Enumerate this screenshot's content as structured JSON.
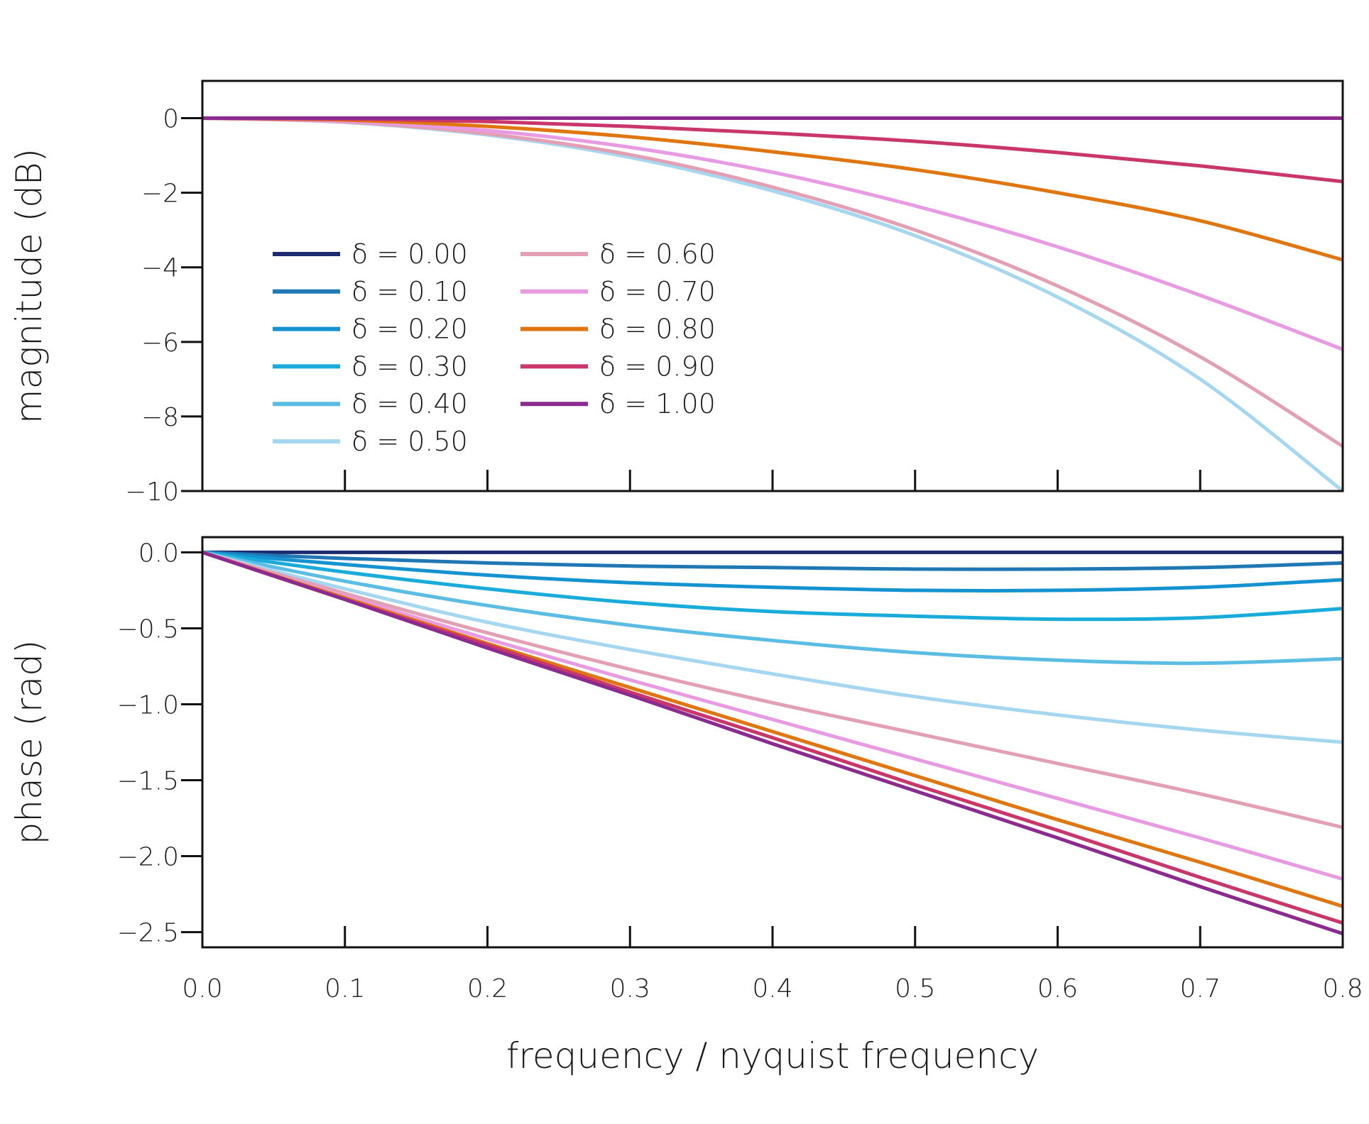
{
  "chart_data": [
    {
      "type": "line",
      "panel": "magnitude",
      "ylabel": "magnitude (dB)",
      "xlim": [
        0.0,
        0.8
      ],
      "ylim": [
        -10,
        1
      ],
      "x_ticks": [
        0.1,
        0.2,
        0.3,
        0.4,
        0.5,
        0.6,
        0.7
      ],
      "y_ticks": [
        0,
        -2,
        -4,
        -6,
        -8,
        -10
      ],
      "y_tick_labels": [
        "0",
        "−2",
        "−4",
        "−6",
        "−8",
        "−10"
      ],
      "grid": false,
      "legend": {
        "placement": "left, two columns",
        "entries": [
          "δ = 0.00",
          "δ = 0.10",
          "δ = 0.20",
          "δ = 0.30",
          "δ = 0.40",
          "δ = 0.50",
          "δ = 0.60",
          "δ = 0.70",
          "δ = 0.80",
          "δ = 0.90",
          "δ = 1.00"
        ]
      },
      "x": [
        0.0,
        0.1,
        0.2,
        0.3,
        0.4,
        0.5,
        0.6,
        0.7,
        0.8
      ],
      "series": [
        {
          "name": "δ = 0.00",
          "color": "#1c2a6e",
          "values": [
            0,
            0,
            0,
            0,
            0,
            0,
            0,
            0,
            0
          ]
        },
        {
          "name": "δ = 0.10",
          "color": "#1f77b4",
          "values": [
            0,
            0,
            0,
            0,
            0,
            0,
            0,
            0,
            0
          ]
        },
        {
          "name": "δ = 0.20",
          "color": "#1592d0",
          "values": [
            0,
            0,
            0,
            0,
            0,
            0,
            0,
            0,
            0
          ]
        },
        {
          "name": "δ = 0.30",
          "color": "#19acdb",
          "values": [
            0,
            0,
            0,
            0,
            0,
            0,
            0,
            0,
            0
          ]
        },
        {
          "name": "δ = 0.40",
          "color": "#5bbde3",
          "values": [
            0,
            0,
            0,
            0,
            0,
            0,
            0,
            0,
            0
          ]
        },
        {
          "name": "δ = 0.50",
          "color": "#a5d8f0",
          "values": [
            0,
            -0.11,
            -0.45,
            -1.05,
            -1.95,
            -3.15,
            -4.8,
            -7.0,
            -10.0
          ]
        },
        {
          "name": "δ = 0.60",
          "color": "#e3a0b4",
          "values": [
            0,
            -0.1,
            -0.42,
            -0.98,
            -1.85,
            -3.0,
            -4.5,
            -6.4,
            -8.8
          ]
        },
        {
          "name": "δ = 0.70",
          "color": "#e89ae3",
          "values": [
            0,
            -0.08,
            -0.33,
            -0.78,
            -1.45,
            -2.35,
            -3.45,
            -4.75,
            -6.2
          ]
        },
        {
          "name": "δ = 0.80",
          "color": "#df760f",
          "values": [
            0,
            -0.05,
            -0.22,
            -0.5,
            -0.9,
            -1.38,
            -2.0,
            -2.75,
            -3.8
          ]
        },
        {
          "name": "δ = 0.90",
          "color": "#c8366a",
          "values": [
            0,
            -0.02,
            -0.09,
            -0.22,
            -0.4,
            -0.62,
            -0.92,
            -1.28,
            -1.7
          ]
        },
        {
          "name": "δ = 1.00",
          "color": "#8b2a8f",
          "values": [
            0,
            0,
            0,
            0,
            0,
            0,
            0,
            0,
            0
          ]
        }
      ]
    },
    {
      "type": "line",
      "panel": "phase",
      "ylabel": "phase (rad)",
      "xlabel": "frequency / nyquist frequency",
      "xlim": [
        0.0,
        0.8
      ],
      "ylim": [
        -2.6,
        0.1
      ],
      "x_ticks": [
        0.0,
        0.1,
        0.2,
        0.3,
        0.4,
        0.5,
        0.6,
        0.7,
        0.8
      ],
      "x_tick_labels": [
        "0.0",
        "0.1",
        "0.2",
        "0.3",
        "0.4",
        "0.5",
        "0.6",
        "0.7",
        "0.8"
      ],
      "y_ticks": [
        0.0,
        -0.5,
        -1.0,
        -1.5,
        -2.0,
        -2.5
      ],
      "y_tick_labels": [
        "0.0",
        "−0.5",
        "−1.0",
        "−1.5",
        "−2.0",
        "−2.5"
      ],
      "grid": false,
      "x": [
        0.0,
        0.1,
        0.2,
        0.3,
        0.4,
        0.5,
        0.6,
        0.7,
        0.8
      ],
      "series": [
        {
          "name": "δ = 0.00",
          "color": "#1c2a6e",
          "values": [
            0,
            0,
            0,
            0,
            0,
            0,
            0,
            0,
            0
          ]
        },
        {
          "name": "δ = 0.10",
          "color": "#1f77b4",
          "values": [
            0,
            -0.04,
            -0.07,
            -0.09,
            -0.1,
            -0.11,
            -0.11,
            -0.1,
            -0.07
          ]
        },
        {
          "name": "δ = 0.20",
          "color": "#1592d0",
          "values": [
            0,
            -0.08,
            -0.15,
            -0.2,
            -0.23,
            -0.25,
            -0.25,
            -0.23,
            -0.18
          ]
        },
        {
          "name": "δ = 0.30",
          "color": "#19acdb",
          "values": [
            0,
            -0.13,
            -0.24,
            -0.33,
            -0.39,
            -0.42,
            -0.44,
            -0.43,
            -0.37
          ]
        },
        {
          "name": "δ = 0.40",
          "color": "#5bbde3",
          "values": [
            0,
            -0.19,
            -0.35,
            -0.48,
            -0.58,
            -0.66,
            -0.71,
            -0.73,
            -0.7
          ]
        },
        {
          "name": "δ = 0.50",
          "color": "#a5d8f0",
          "values": [
            0,
            -0.24,
            -0.46,
            -0.64,
            -0.8,
            -0.95,
            -1.07,
            -1.17,
            -1.25
          ]
        },
        {
          "name": "δ = 0.60",
          "color": "#e3a0b4",
          "values": [
            0,
            -0.27,
            -0.53,
            -0.77,
            -0.99,
            -1.19,
            -1.39,
            -1.59,
            -1.81
          ]
        },
        {
          "name": "δ = 0.70",
          "color": "#e89ae3",
          "values": [
            0,
            -0.29,
            -0.57,
            -0.84,
            -1.1,
            -1.36,
            -1.62,
            -1.88,
            -2.15
          ]
        },
        {
          "name": "δ = 0.80",
          "color": "#df760f",
          "values": [
            0,
            -0.3,
            -0.6,
            -0.89,
            -1.18,
            -1.47,
            -1.76,
            -2.04,
            -2.33
          ]
        },
        {
          "name": "δ = 0.90",
          "color": "#c8366a",
          "values": [
            0,
            -0.31,
            -0.61,
            -0.92,
            -1.22,
            -1.53,
            -1.83,
            -2.14,
            -2.44
          ]
        },
        {
          "name": "δ = 1.00",
          "color": "#8b2a8f",
          "values": [
            0,
            -0.31,
            -0.63,
            -0.94,
            -1.26,
            -1.57,
            -1.88,
            -2.2,
            -2.51
          ]
        }
      ]
    }
  ]
}
